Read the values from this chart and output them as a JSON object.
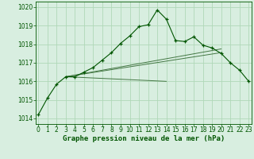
{
  "title": "Graphe pression niveau de la mer (hPa)",
  "background_color": "#d8eee0",
  "grid_color": "#b0d8b8",
  "line_color_main": "#005500",
  "line_color_secondary": "#447744",
  "ylim": [
    1013.7,
    1020.3
  ],
  "yticks": [
    1014,
    1015,
    1016,
    1017,
    1018,
    1019,
    1020
  ],
  "xlim": [
    -0.3,
    23.3
  ],
  "xticks": [
    0,
    1,
    2,
    3,
    4,
    5,
    6,
    7,
    8,
    9,
    10,
    11,
    12,
    13,
    14,
    15,
    16,
    17,
    18,
    19,
    20,
    21,
    22,
    23
  ],
  "main_data": [
    1014.2,
    1015.1,
    1015.85,
    1016.25,
    1016.25,
    1016.5,
    1016.75,
    1017.15,
    1017.55,
    1018.05,
    1018.45,
    1018.95,
    1019.05,
    1019.85,
    1019.35,
    1018.2,
    1018.15,
    1018.4,
    1017.95,
    1017.8,
    1017.5,
    1017.0,
    1016.6,
    1016.0
  ],
  "trend_lines": [
    {
      "x": [
        3,
        14
      ],
      "y": [
        1016.25,
        1016.0
      ]
    },
    {
      "x": [
        3,
        20
      ],
      "y": [
        1016.25,
        1017.75
      ]
    },
    {
      "x": [
        3,
        20
      ],
      "y": [
        1016.25,
        1017.55
      ]
    }
  ],
  "tick_fontsize": 5.5,
  "title_fontsize": 6.5
}
